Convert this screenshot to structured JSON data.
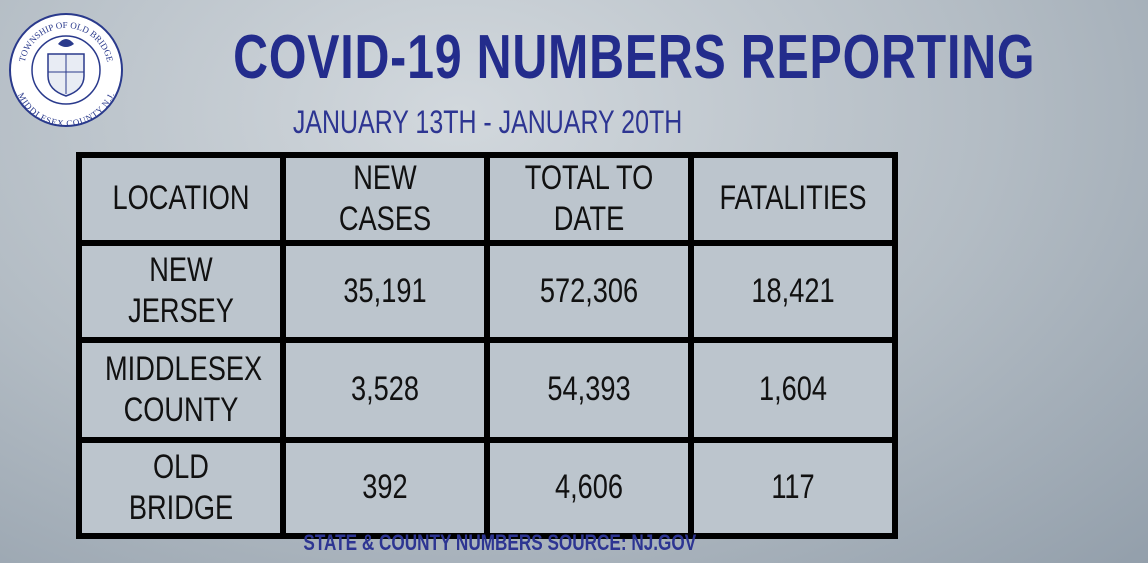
{
  "logo": {
    "top_text": "TOWNSHIP OF OLD BRIDGE",
    "bottom_text": "MIDDLESEX COUNTY N.J."
  },
  "header": {
    "title": "COVID-19 NUMBERS REPORTING",
    "subtitle": "JANUARY 13TH - JANUARY 20TH"
  },
  "table": {
    "columns": [
      "LOCATION",
      "NEW CASES",
      "TOTAL TO DATE",
      "FATALITIES"
    ],
    "rows": [
      [
        "NEW JERSEY",
        "35,191",
        "572,306",
        "18,421"
      ],
      [
        "MIDDLESEX COUNTY",
        "3,528",
        "54,393",
        "1,604"
      ],
      [
        "OLD BRIDGE",
        "392",
        "4,606",
        "117"
      ]
    ]
  },
  "footer": {
    "source": "STATE & COUNTY NUMBERS SOURCE: NJ.GOV"
  }
}
